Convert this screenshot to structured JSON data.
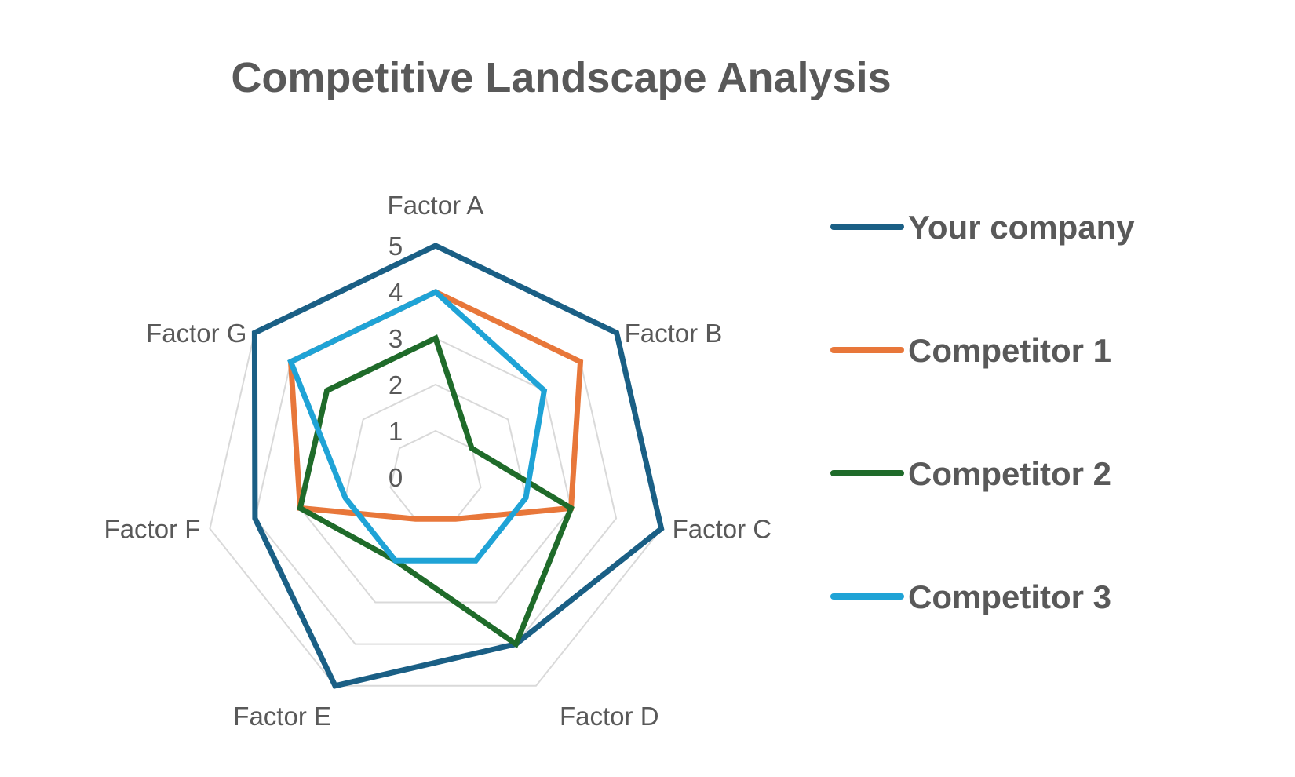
{
  "chart_data": {
    "type": "radar",
    "title": "Competitive Landscape Analysis",
    "categories": [
      "Factor A",
      "Factor B",
      "Factor C",
      "Factor D",
      "Factor E",
      "Factor F",
      "Factor G"
    ],
    "rlim": [
      0,
      5
    ],
    "ticks": [
      "0",
      "1",
      "2",
      "3",
      "4",
      "5"
    ],
    "grid": true,
    "legend_position": "right",
    "series": [
      {
        "name": "Your company",
        "color": "#1a5f85",
        "values": [
          5,
          5,
          5,
          4,
          5,
          4,
          5
        ]
      },
      {
        "name": "Competitor 1",
        "color": "#e8773a",
        "values": [
          4,
          4,
          3,
          1,
          1,
          3,
          4
        ]
      },
      {
        "name": "Competitor 2",
        "color": "#1f6b2a",
        "values": [
          3,
          1,
          3,
          4,
          2,
          3,
          3
        ]
      },
      {
        "name": "Competitor 3",
        "color": "#1fa3d6",
        "values": [
          4,
          3,
          2,
          2,
          2,
          2,
          4
        ]
      }
    ]
  }
}
